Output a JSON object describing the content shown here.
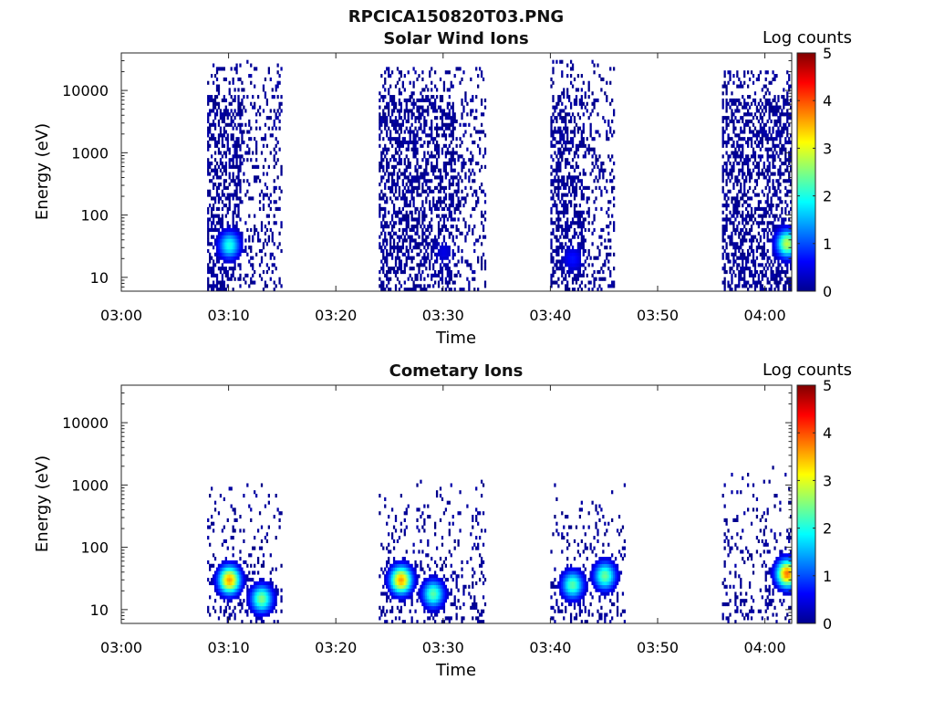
{
  "title": "RPCICA150820T03.PNG",
  "chart_data": [
    {
      "type": "heatmap",
      "title": "Solar Wind Ions",
      "xlabel": "Time",
      "ylabel": "Energy (eV)",
      "colorbar_label": "Log counts",
      "colorbar_ticks": [
        "0",
        "1",
        "2",
        "3",
        "4",
        "5"
      ],
      "clim": [
        0,
        5
      ],
      "colormap": "jet",
      "x_range": [
        "03:00",
        "04:02:30"
      ],
      "x_ticks": [
        "03:00",
        "03:10",
        "03:20",
        "03:30",
        "03:40",
        "03:50",
        "04:00"
      ],
      "y_scale": "log",
      "y_range": [
        6,
        40000
      ],
      "y_ticks": [
        "10",
        "100",
        "1000",
        "10000"
      ],
      "bursts": [
        {
          "start": "03:08",
          "end": "03:15",
          "e_min": 6,
          "e_max": 30000,
          "dense_end": "03:11",
          "peak": {
            "time": "03:10",
            "energy_eV": 33,
            "log_counts": 2.0
          }
        },
        {
          "start": "03:24",
          "end": "03:34",
          "e_min": 6,
          "e_max": 25000,
          "dense_end": "03:31",
          "peak": {
            "time": "03:30",
            "energy_eV": 25,
            "log_counts": 0.5
          }
        },
        {
          "start": "03:40",
          "end": "03:46",
          "e_min": 6,
          "e_max": 30000,
          "dense_end": "03:43",
          "peak": {
            "time": "03:42",
            "energy_eV": 20,
            "log_counts": 0.7
          }
        },
        {
          "start": "03:56",
          "end": "04:02:30",
          "e_min": 6,
          "e_max": 20000,
          "dense_end": "04:02:30",
          "peak": {
            "time": "04:02",
            "energy_eV": 35,
            "log_counts": 2.8
          }
        }
      ]
    },
    {
      "type": "heatmap",
      "title": "Cometary Ions",
      "xlabel": "Time",
      "ylabel": "Energy (eV)",
      "colorbar_label": "Log counts",
      "colorbar_ticks": [
        "0",
        "1",
        "2",
        "3",
        "4",
        "5"
      ],
      "clim": [
        0,
        5
      ],
      "colormap": "jet",
      "x_range": [
        "03:00",
        "04:02:30"
      ],
      "x_ticks": [
        "03:00",
        "03:10",
        "03:20",
        "03:30",
        "03:40",
        "03:50",
        "04:00"
      ],
      "y_scale": "log",
      "y_range": [
        6,
        40000
      ],
      "y_ticks": [
        "10",
        "100",
        "1000",
        "10000"
      ],
      "bursts": [
        {
          "start": "03:08",
          "end": "03:15",
          "e_min": 6,
          "e_max": 1300,
          "peaks": [
            {
              "time": "03:10",
              "energy_eV": 30,
              "log_counts": 3.6
            },
            {
              "time": "03:13",
              "energy_eV": 15,
              "log_counts": 2.5
            }
          ]
        },
        {
          "start": "03:24",
          "end": "03:34",
          "e_min": 6,
          "e_max": 1200,
          "peaks": [
            {
              "time": "03:26",
              "energy_eV": 30,
              "log_counts": 3.6
            },
            {
              "time": "03:29",
              "energy_eV": 18,
              "log_counts": 2.3
            }
          ]
        },
        {
          "start": "03:40",
          "end": "03:47",
          "e_min": 6,
          "e_max": 1200,
          "peaks": [
            {
              "time": "03:42",
              "energy_eV": 25,
              "log_counts": 2.3
            },
            {
              "time": "03:45",
              "energy_eV": 35,
              "log_counts": 2.4
            }
          ]
        },
        {
          "start": "03:56",
          "end": "04:02:30",
          "e_min": 6,
          "e_max": 2000,
          "peaks": [
            {
              "time": "04:02",
              "energy_eV": 38,
              "log_counts": 3.8
            }
          ]
        }
      ]
    }
  ]
}
